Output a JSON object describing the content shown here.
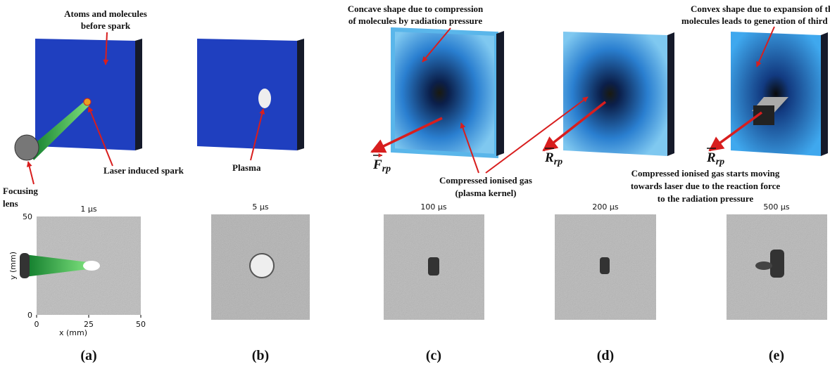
{
  "annotations": {
    "atoms": [
      "Atoms and molecules",
      "before spark"
    ],
    "spark": [
      "Laser induced spark"
    ],
    "lens": [
      "Focusing",
      "lens"
    ],
    "plasma": [
      "Plasma"
    ],
    "concave": [
      "Concave shape due to compression",
      "of molecules by radiation pressure"
    ],
    "kernel": [
      "Compressed ionised gas",
      "(plasma kernel)"
    ],
    "convex": [
      "Convex shape due to expansion of the",
      "molecules leads to generation of third lobe"
    ],
    "moving": [
      "Compressed ionised gas starts moving",
      "towards laser due to the reaction force",
      "to the radiation pressure"
    ]
  },
  "forces": [
    {
      "symbol": "F",
      "subscript": "rp"
    },
    {
      "symbol": "R",
      "subscript": "rp"
    },
    {
      "symbol": "R",
      "subscript": "rp"
    }
  ],
  "panels": [
    {
      "label": "(a)",
      "time": "1 µs"
    },
    {
      "label": "(b)",
      "time": "5 µs"
    },
    {
      "label": "(c)",
      "time": "100 µs"
    },
    {
      "label": "(d)",
      "time": "200 µs"
    },
    {
      "label": "(e)",
      "time": "500 µs"
    }
  ],
  "axes": {
    "y_label": "y (mm)",
    "x_label": "x (mm)",
    "yticks": [
      50,
      0
    ],
    "xticks": [
      0,
      25,
      50
    ]
  }
}
